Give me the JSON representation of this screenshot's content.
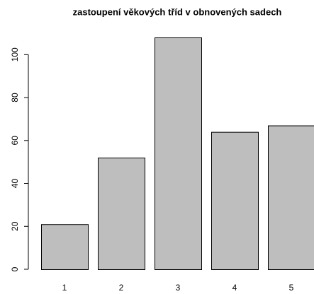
{
  "chart_data": {
    "type": "bar",
    "title": "zastoupení věkových tříd v obnovených sadech",
    "categories": [
      "1",
      "2",
      "3",
      "4",
      "5"
    ],
    "values": [
      21,
      52,
      108,
      64,
      67
    ],
    "color": "#bebebe",
    "ylim": [
      0,
      108
    ],
    "yticks": [
      0,
      20,
      40,
      60,
      80,
      100
    ],
    "grid": false
  }
}
